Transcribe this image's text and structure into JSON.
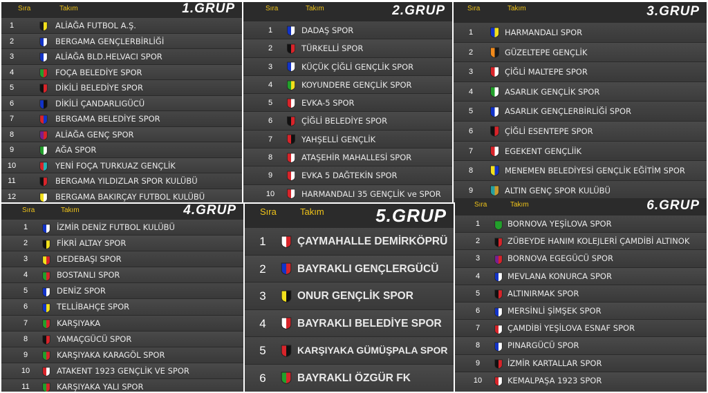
{
  "headers": {
    "sira": "Sıra",
    "takim": "Takım"
  },
  "groups": [
    {
      "id": "p1",
      "title": "1.GRUP",
      "teams": [
        {
          "rank": "1",
          "name": "ALİAĞA FUTBOL A.Ş.",
          "colors": [
            "#1a1a1a",
            "#f2e01c"
          ]
        },
        {
          "rank": "2",
          "name": "BERGAMA GENÇLERBİRLİĞİ",
          "colors": [
            "#1233c9",
            "#ffffff"
          ]
        },
        {
          "rank": "3",
          "name": "ALİAĞA BLD.HELVACI SPOR",
          "colors": [
            "#1233c9",
            "#ffffff"
          ]
        },
        {
          "rank": "4",
          "name": "FOÇA BELEDİYE SPOR",
          "colors": [
            "#22a02b",
            "#d8242a"
          ]
        },
        {
          "rank": "5",
          "name": "DİKİLİ BELEDİYE SPOR",
          "colors": [
            "#111111",
            "#d8242a"
          ]
        },
        {
          "rank": "6",
          "name": "DİKİLİ ÇANDARLIGÜCÜ",
          "colors": [
            "#1233c9",
            "#111111"
          ]
        },
        {
          "rank": "7",
          "name": "BERGAMA BELEDİYE SPOR",
          "colors": [
            "#d8242a",
            "#1233c9"
          ]
        },
        {
          "rank": "8",
          "name": "ALİAĞA GENÇ SPOR",
          "colors": [
            "#7a1f8f",
            "#d8242a"
          ]
        },
        {
          "rank": "9",
          "name": "AĞA SPOR",
          "colors": [
            "#22a02b",
            "#ffffff"
          ]
        },
        {
          "rank": "10",
          "name": "YENİ FOÇA TURKUAZ GENÇLİK",
          "colors": [
            "#d8242a",
            "#25b5b5"
          ]
        },
        {
          "rank": "11",
          "name": "BERGAMA YILDIZLAR SPOR KULÜBÜ",
          "colors": [
            "#111111",
            "#d8242a"
          ]
        },
        {
          "rank": "12",
          "name": "BERGAMA BAKIRÇAY FUTBOL KULÜBÜ",
          "colors": [
            "#f2e01c",
            "#ffffff"
          ]
        }
      ]
    },
    {
      "id": "p2",
      "title": "2.GRUP",
      "teams": [
        {
          "rank": "1",
          "name": "DADAŞ SPOR",
          "colors": [
            "#1233c9",
            "#ffffff"
          ]
        },
        {
          "rank": "2",
          "name": "TÜRKELLİ SPOR",
          "colors": [
            "#111111",
            "#d8242a"
          ]
        },
        {
          "rank": "3",
          "name": "KÜÇÜK ÇİĞLİ GENÇLİK SPOR",
          "colors": [
            "#1233c9",
            "#ffffff"
          ]
        },
        {
          "rank": "4",
          "name": "KOYUNDERE GENÇLİK SPOR",
          "colors": [
            "#22a02b",
            "#f2e01c"
          ]
        },
        {
          "rank": "5",
          "name": "EVKA-5 SPOR",
          "colors": [
            "#d8242a",
            "#ffffff"
          ]
        },
        {
          "rank": "6",
          "name": "ÇİĞLİ BELEDİYE SPOR",
          "colors": [
            "#111111",
            "#d8242a"
          ]
        },
        {
          "rank": "7",
          "name": "YAHŞELLİ GENÇLİK",
          "colors": [
            "#d8242a",
            "#111111"
          ]
        },
        {
          "rank": "8",
          "name": "ATAŞEHİR MAHALLESİ SPOR",
          "colors": [
            "#d8242a",
            "#ffffff"
          ]
        },
        {
          "rank": "9",
          "name": "EVKA 5 DAĞTEKİN SPOR",
          "colors": [
            "#d8242a",
            "#ffffff"
          ]
        },
        {
          "rank": "10",
          "name": "HARMANDALI 35 GENÇLİK ve SPOR",
          "colors": [
            "#d8242a",
            "#ffffff"
          ]
        }
      ]
    },
    {
      "id": "p3",
      "title": "3.GRUP",
      "teams": [
        {
          "rank": "1",
          "name": "HARMANDALI SPOR",
          "colors": [
            "#1233c9",
            "#f2e01c"
          ]
        },
        {
          "rank": "2",
          "name": "GÜZELTEPE GENÇLİK",
          "colors": [
            "#f08a1c",
            "#1a1a1a"
          ]
        },
        {
          "rank": "3",
          "name": "ÇİĞLİ MALTEPE SPOR",
          "colors": [
            "#d8242a",
            "#ffffff"
          ]
        },
        {
          "rank": "4",
          "name": "ASARLIK GENÇLİK SPOR",
          "colors": [
            "#22a02b",
            "#ffffff"
          ]
        },
        {
          "rank": "5",
          "name": "ASARLIK GENÇLERBİRLİĞİ SPOR",
          "colors": [
            "#1233c9",
            "#ffffff"
          ]
        },
        {
          "rank": "6",
          "name": "ÇİĞLİ ESENTEPE SPOR",
          "colors": [
            "#111111",
            "#d8242a"
          ]
        },
        {
          "rank": "7",
          "name": "EGEKENT GENÇLİİK",
          "colors": [
            "#d8242a",
            "#ffffff"
          ]
        },
        {
          "rank": "8",
          "name": "MENEMEN BELEDİYESİ GENÇLİK EĞİTİM SPOR",
          "colors": [
            "#f2e01c",
            "#1233c9"
          ]
        },
        {
          "rank": "9",
          "name": "ALTIN GENÇ SPOR KULÜBÜ",
          "colors": [
            "#25a0a0",
            "#c99a2e"
          ]
        }
      ]
    },
    {
      "id": "p4",
      "title": "4.GRUP",
      "teams": [
        {
          "rank": "1",
          "name": "İZMİR DENİZ FUTBOL KULÜBÜ",
          "colors": [
            "#1233c9",
            "#ffffff"
          ]
        },
        {
          "rank": "2",
          "name": "FİKRİ ALTAY SPOR",
          "colors": [
            "#111111",
            "#f2e01c"
          ]
        },
        {
          "rank": "3",
          "name": "DEDEBAŞI SPOR",
          "colors": [
            "#f2e01c",
            "#d8242a"
          ]
        },
        {
          "rank": "4",
          "name": "BOSTANLI SPOR",
          "colors": [
            "#22a02b",
            "#d8242a"
          ]
        },
        {
          "rank": "5",
          "name": "DENİZ SPOR",
          "colors": [
            "#1233c9",
            "#ffffff"
          ]
        },
        {
          "rank": "6",
          "name": "TELLİBAHÇE SPOR",
          "colors": [
            "#1233c9",
            "#f2e01c"
          ]
        },
        {
          "rank": "7",
          "name": "KARŞIYAKA",
          "colors": [
            "#22a02b",
            "#d8242a"
          ]
        },
        {
          "rank": "8",
          "name": "YAMAÇGÜCÜ SPOR",
          "colors": [
            "#111111",
            "#d8242a"
          ]
        },
        {
          "rank": "9",
          "name": "KARŞIYAKA KARAGÖL SPOR",
          "colors": [
            "#22a02b",
            "#d8242a"
          ]
        },
        {
          "rank": "10",
          "name": "ATAKENT 1923 GENÇLİK VE SPOR",
          "colors": [
            "#d8242a",
            "#ffffff"
          ]
        },
        {
          "rank": "11",
          "name": "KARŞIYAKA YALI SPOR",
          "colors": [
            "#22a02b",
            "#d8242a"
          ]
        }
      ]
    },
    {
      "id": "p5",
      "title": "5.GRUP",
      "teams": [
        {
          "rank": "1",
          "name": "ÇAYMAHALLE DEMİRKÖPRÜ",
          "colors": [
            "#ffffff",
            "#d8242a"
          ]
        },
        {
          "rank": "2",
          "name": "BAYRAKLI GENÇLERGÜCÜ",
          "colors": [
            "#1233c9",
            "#d8242a"
          ]
        },
        {
          "rank": "3",
          "name": "ONUR GENÇLİK SPOR",
          "colors": [
            "#f2e01c",
            "#111111"
          ]
        },
        {
          "rank": "4",
          "name": "BAYRAKLI BELEDİYE SPOR",
          "colors": [
            "#ffffff",
            "#d8242a"
          ]
        },
        {
          "rank": "5",
          "name": "KARŞIYAKA GÜMÜŞPALA SPOR",
          "colors": [
            "#d8242a",
            "#111111"
          ]
        },
        {
          "rank": "6",
          "name": "BAYRAKLI ÖZGÜR FK",
          "colors": [
            "#22a02b",
            "#d8242a"
          ]
        }
      ]
    },
    {
      "id": "p6",
      "title": "6.GRUP",
      "teams": [
        {
          "rank": "1",
          "name": "BORNOVA YEŞİLOVA SPOR",
          "colors": [
            "#22a02b",
            "#22a02b"
          ]
        },
        {
          "rank": "2",
          "name": "ZÜBEYDE HANIM KOLEJLERİ ÇAMDİBİ ALTINOK",
          "colors": [
            "#111111",
            "#d8242a"
          ]
        },
        {
          "rank": "3",
          "name": "BORNOVA EGEGÜCÜ SPOR",
          "colors": [
            "#7a1f8f",
            "#d8242a"
          ]
        },
        {
          "rank": "4",
          "name": "MEVLANA KONURCA SPOR",
          "colors": [
            "#1233c9",
            "#ffffff"
          ]
        },
        {
          "rank": "5",
          "name": "ALTINIRMAK SPOR",
          "colors": [
            "#111111",
            "#d8242a"
          ]
        },
        {
          "rank": "6",
          "name": "MERSİNLİ ŞİMŞEK SPOR",
          "colors": [
            "#1233c9",
            "#ffffff"
          ]
        },
        {
          "rank": "7",
          "name": "ÇAMDİBİ YEŞİLOVA ESNAF SPOR",
          "colors": [
            "#d8242a",
            "#ffffff"
          ]
        },
        {
          "rank": "8",
          "name": "PINARGÜCÜ SPOR",
          "colors": [
            "#1233c9",
            "#ffffff"
          ]
        },
        {
          "rank": "9",
          "name": "İZMİR KARTALLAR SPOR",
          "colors": [
            "#111111",
            "#d8242a"
          ]
        },
        {
          "rank": "10",
          "name": "KEMALPAŞA 1923 SPOR",
          "colors": [
            "#d8242a",
            "#ffffff"
          ]
        }
      ]
    }
  ]
}
